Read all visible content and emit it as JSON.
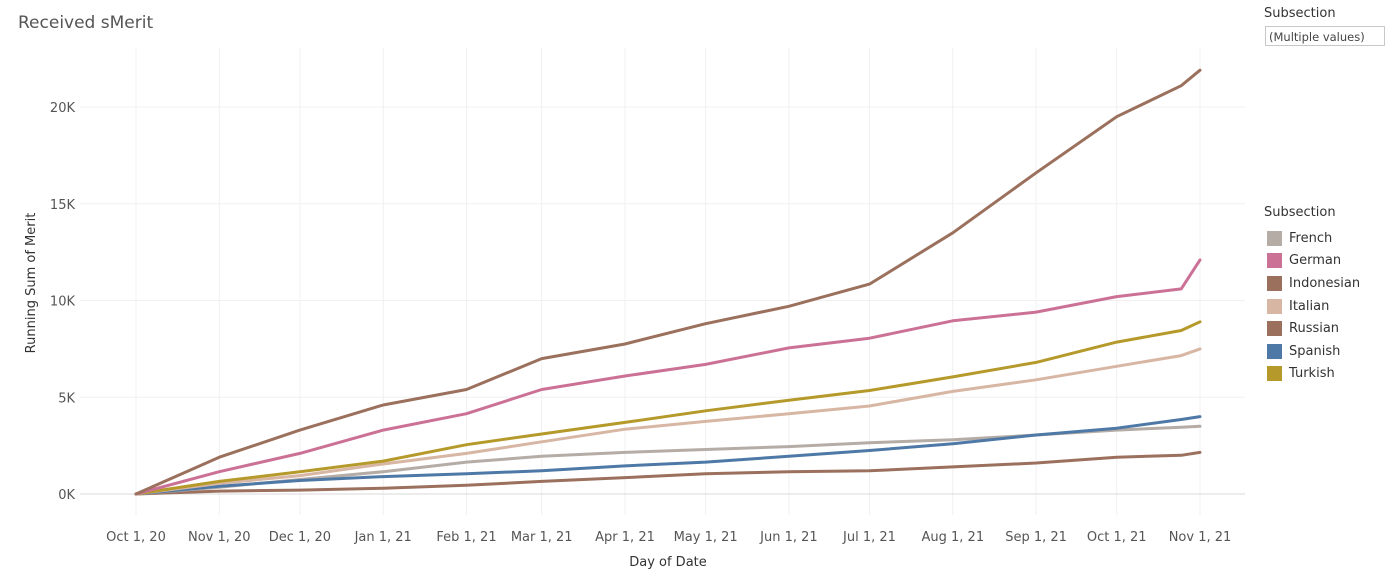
{
  "title": "Received sMerit",
  "filter": {
    "label": "Subsection",
    "value": "(Multiple values)"
  },
  "legend": {
    "title": "Subsection",
    "items": [
      {
        "label": "French",
        "color": "#b5aca6"
      },
      {
        "label": "German",
        "color": "#cc7196"
      },
      {
        "label": "Indonesian",
        "color": "#9b705d"
      },
      {
        "label": "Italian",
        "color": "#d8b6a4"
      },
      {
        "label": "Russian",
        "color": "#9b705d"
      },
      {
        "label": "Spanish",
        "color": "#4e79a7"
      },
      {
        "label": "Turkish",
        "color": "#b59a2b"
      }
    ]
  },
  "chart_data": {
    "type": "line",
    "title": "Received sMerit",
    "xlabel": "Day of Date",
    "ylabel": "Running Sum of Merit",
    "x_ticks": [
      "Oct 1, 20",
      "Nov 1, 20",
      "Dec 1, 20",
      "Jan 1, 21",
      "Feb 1, 21",
      "Mar 1, 21",
      "Apr 1, 21",
      "May 1, 21",
      "Jun 1, 21",
      "Jul 1, 21",
      "Aug 1, 21",
      "Sep 1, 21",
      "Oct 1, 21",
      "Nov 1, 21"
    ],
    "y_ticks": [
      "0K",
      "5K",
      "10K",
      "15K",
      "20K"
    ],
    "y_tick_values": [
      0,
      5000,
      10000,
      15000,
      20000
    ],
    "ylim": [
      0,
      22500
    ],
    "xlim": [
      "2020-09-20",
      "2021-11-10"
    ],
    "grid": true,
    "legend_placement": "right",
    "x": [
      "2020-10-01",
      "2020-11-01",
      "2020-12-01",
      "2021-01-01",
      "2021-02-01",
      "2021-03-01",
      "2021-04-01",
      "2021-05-01",
      "2021-06-01",
      "2021-07-01",
      "2021-08-01",
      "2021-09-01",
      "2021-10-01",
      "2021-10-25",
      "2021-11-01"
    ],
    "series": [
      {
        "name": "French",
        "color": "#b5aca6",
        "values": [
          0,
          350,
          750,
          1150,
          1650,
          1950,
          2150,
          2300,
          2450,
          2650,
          2800,
          3050,
          3300,
          3450,
          3500
        ]
      },
      {
        "name": "German",
        "color": "#cc7196",
        "values": [
          0,
          1150,
          2100,
          3300,
          4150,
          5400,
          6100,
          6700,
          7550,
          8050,
          8950,
          9400,
          10200,
          10600,
          12100
        ]
      },
      {
        "name": "Indonesian",
        "color": "#9b705d",
        "values": [
          0,
          150,
          200,
          300,
          450,
          650,
          850,
          1050,
          1150,
          1200,
          1400,
          1600,
          1900,
          2000,
          2150
        ]
      },
      {
        "name": "Italian",
        "color": "#d8b6a4",
        "values": [
          0,
          550,
          950,
          1550,
          2100,
          2700,
          3350,
          3750,
          4150,
          4550,
          5300,
          5900,
          6600,
          7150,
          7500
        ]
      },
      {
        "name": "Russian",
        "color": "#9b705d",
        "values": [
          0,
          1900,
          3300,
          4600,
          5400,
          7000,
          7750,
          8800,
          9700,
          10850,
          13500,
          16600,
          19500,
          21100,
          21900
        ]
      },
      {
        "name": "Spanish",
        "color": "#4e79a7",
        "values": [
          0,
          400,
          700,
          900,
          1050,
          1200,
          1450,
          1650,
          1950,
          2250,
          2600,
          3050,
          3400,
          3850,
          4000
        ]
      },
      {
        "name": "Turkish",
        "color": "#b59a2b",
        "values": [
          0,
          650,
          1150,
          1700,
          2550,
          3100,
          3700,
          4300,
          4850,
          5350,
          6050,
          6800,
          7850,
          8450,
          8900
        ]
      }
    ]
  }
}
